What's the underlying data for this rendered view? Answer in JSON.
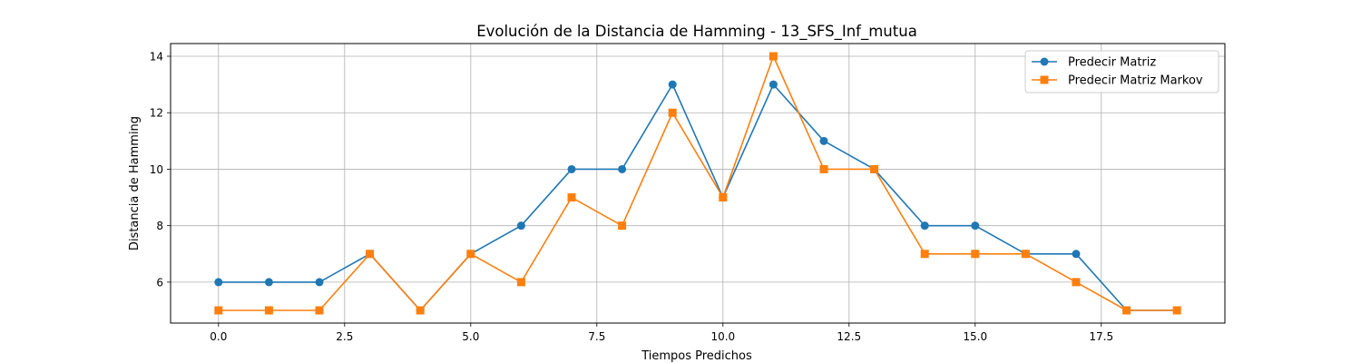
{
  "chart_data": {
    "type": "line",
    "title": "Evolución de la Distancia de Hamming - 13_SFS_Inf_mutua",
    "xlabel": "Tiempos Predichos",
    "ylabel": "Distancia de Hamming",
    "xlim": [
      -0.95,
      19.95
    ],
    "ylim": [
      4.55,
      14.45
    ],
    "xticks": [
      0.0,
      2.5,
      5.0,
      7.5,
      10.0,
      12.5,
      15.0,
      17.5
    ],
    "xtick_labels": [
      "0.0",
      "2.5",
      "5.0",
      "7.5",
      "10.0",
      "12.5",
      "15.0",
      "17.5"
    ],
    "yticks": [
      6,
      8,
      10,
      12,
      14
    ],
    "ytick_labels": [
      "6",
      "8",
      "10",
      "12",
      "14"
    ],
    "grid": true,
    "legend_position": "top-right",
    "x": [
      0,
      1,
      2,
      3,
      4,
      5,
      6,
      7,
      8,
      9,
      10,
      11,
      12,
      13,
      14,
      15,
      16,
      17,
      18,
      19
    ],
    "series": [
      {
        "name": "Predecir Matriz",
        "color": "#1f77b4",
        "marker": "circle",
        "values": [
          6,
          6,
          6,
          7,
          5,
          7,
          8,
          10,
          10,
          13,
          9,
          13,
          11,
          10,
          8,
          8,
          7,
          7,
          5,
          5
        ]
      },
      {
        "name": "Predecir Matriz Markov",
        "color": "#ff7f0e",
        "marker": "square",
        "values": [
          5,
          5,
          5,
          7,
          5,
          7,
          6,
          9,
          8,
          12,
          9,
          14,
          10,
          10,
          7,
          7,
          7,
          6,
          5,
          5
        ]
      }
    ]
  }
}
